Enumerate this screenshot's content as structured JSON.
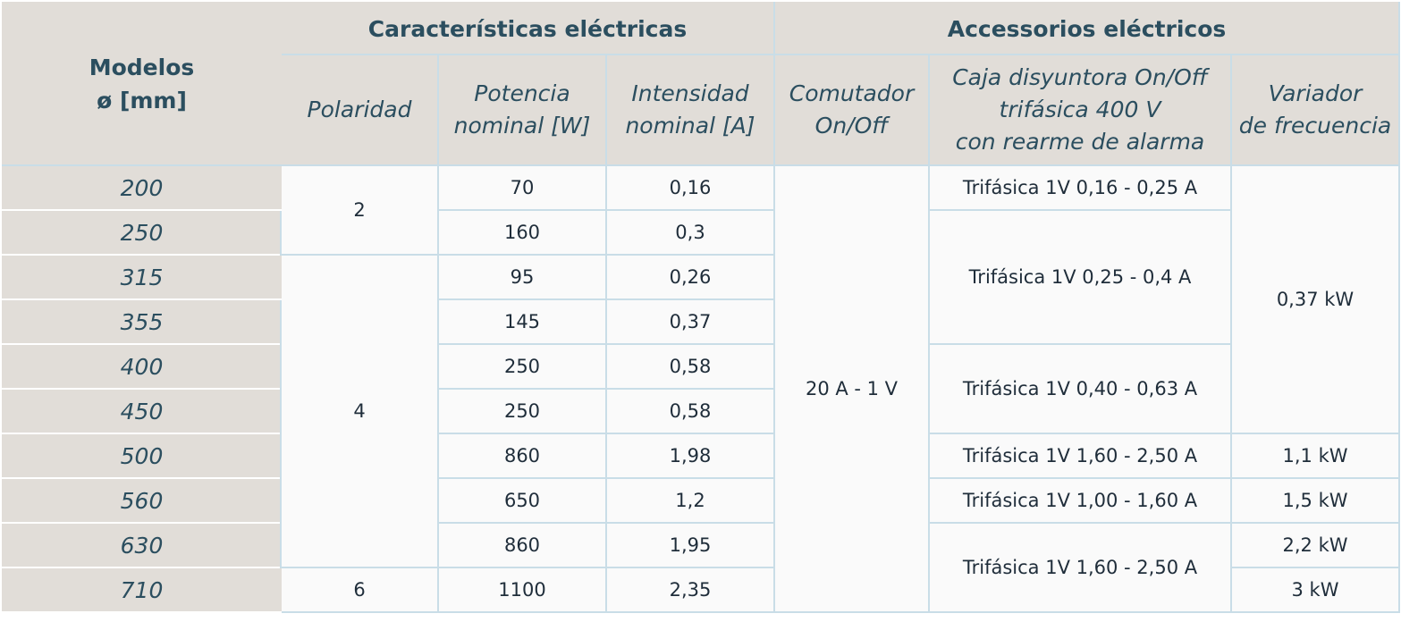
{
  "header": {
    "modelos_line1": "Modelos",
    "modelos_line2": "ø [mm]",
    "group_electrical": "Características eléctricas",
    "group_accessories": "Accessorios eléctricos",
    "col_polaridad": "Polaridad",
    "col_potencia_1": "Potencia",
    "col_potencia_2": "nominal [W]",
    "col_intensidad_1": "Intensidad",
    "col_intensidad_2": "nominal [A]",
    "col_comutador_1": "Comutador",
    "col_comutador_2": "On/Off",
    "col_caja_1": "Caja disyuntora On/Off",
    "col_caja_2": "trifásica 400 V",
    "col_caja_3": "con rearme de alarma",
    "col_variador_1": "Variador",
    "col_variador_2": "de frecuencia"
  },
  "rows": [
    {
      "modelo": "200",
      "potencia": "70",
      "intensidad": "0,16"
    },
    {
      "modelo": "250",
      "potencia": "160",
      "intensidad": "0,3"
    },
    {
      "modelo": "315",
      "potencia": "95",
      "intensidad": "0,26"
    },
    {
      "modelo": "355",
      "potencia": "145",
      "intensidad": "0,37"
    },
    {
      "modelo": "400",
      "potencia": "250",
      "intensidad": "0,58"
    },
    {
      "modelo": "450",
      "potencia": "250",
      "intensidad": "0,58"
    },
    {
      "modelo": "500",
      "potencia": "860",
      "intensidad": "1,98"
    },
    {
      "modelo": "560",
      "potencia": "650",
      "intensidad": "1,2"
    },
    {
      "modelo": "630",
      "potencia": "860",
      "intensidad": "1,95"
    },
    {
      "modelo": "710",
      "potencia": "1100",
      "intensidad": "2,35"
    }
  ],
  "polaridad": [
    "2",
    "4",
    "6"
  ],
  "comutador": "20 A - 1 V",
  "caja": [
    "Trifásica 1V 0,16 -  0,25 A",
    "Trifásica 1V 0,25 - 0,4 A",
    "Trifásica 1V 0,40 - 0,63 A",
    "Trifásica 1V 1,60 - 2,50 A",
    "Trifásica 1V 1,00 - 1,60 A",
    "Trifásica 1V 1,60 - 2,50 A"
  ],
  "variador": [
    "0,37 kW",
    "1,1 kW",
    "1,5 kW",
    "2,2 kW",
    "3 kW"
  ]
}
